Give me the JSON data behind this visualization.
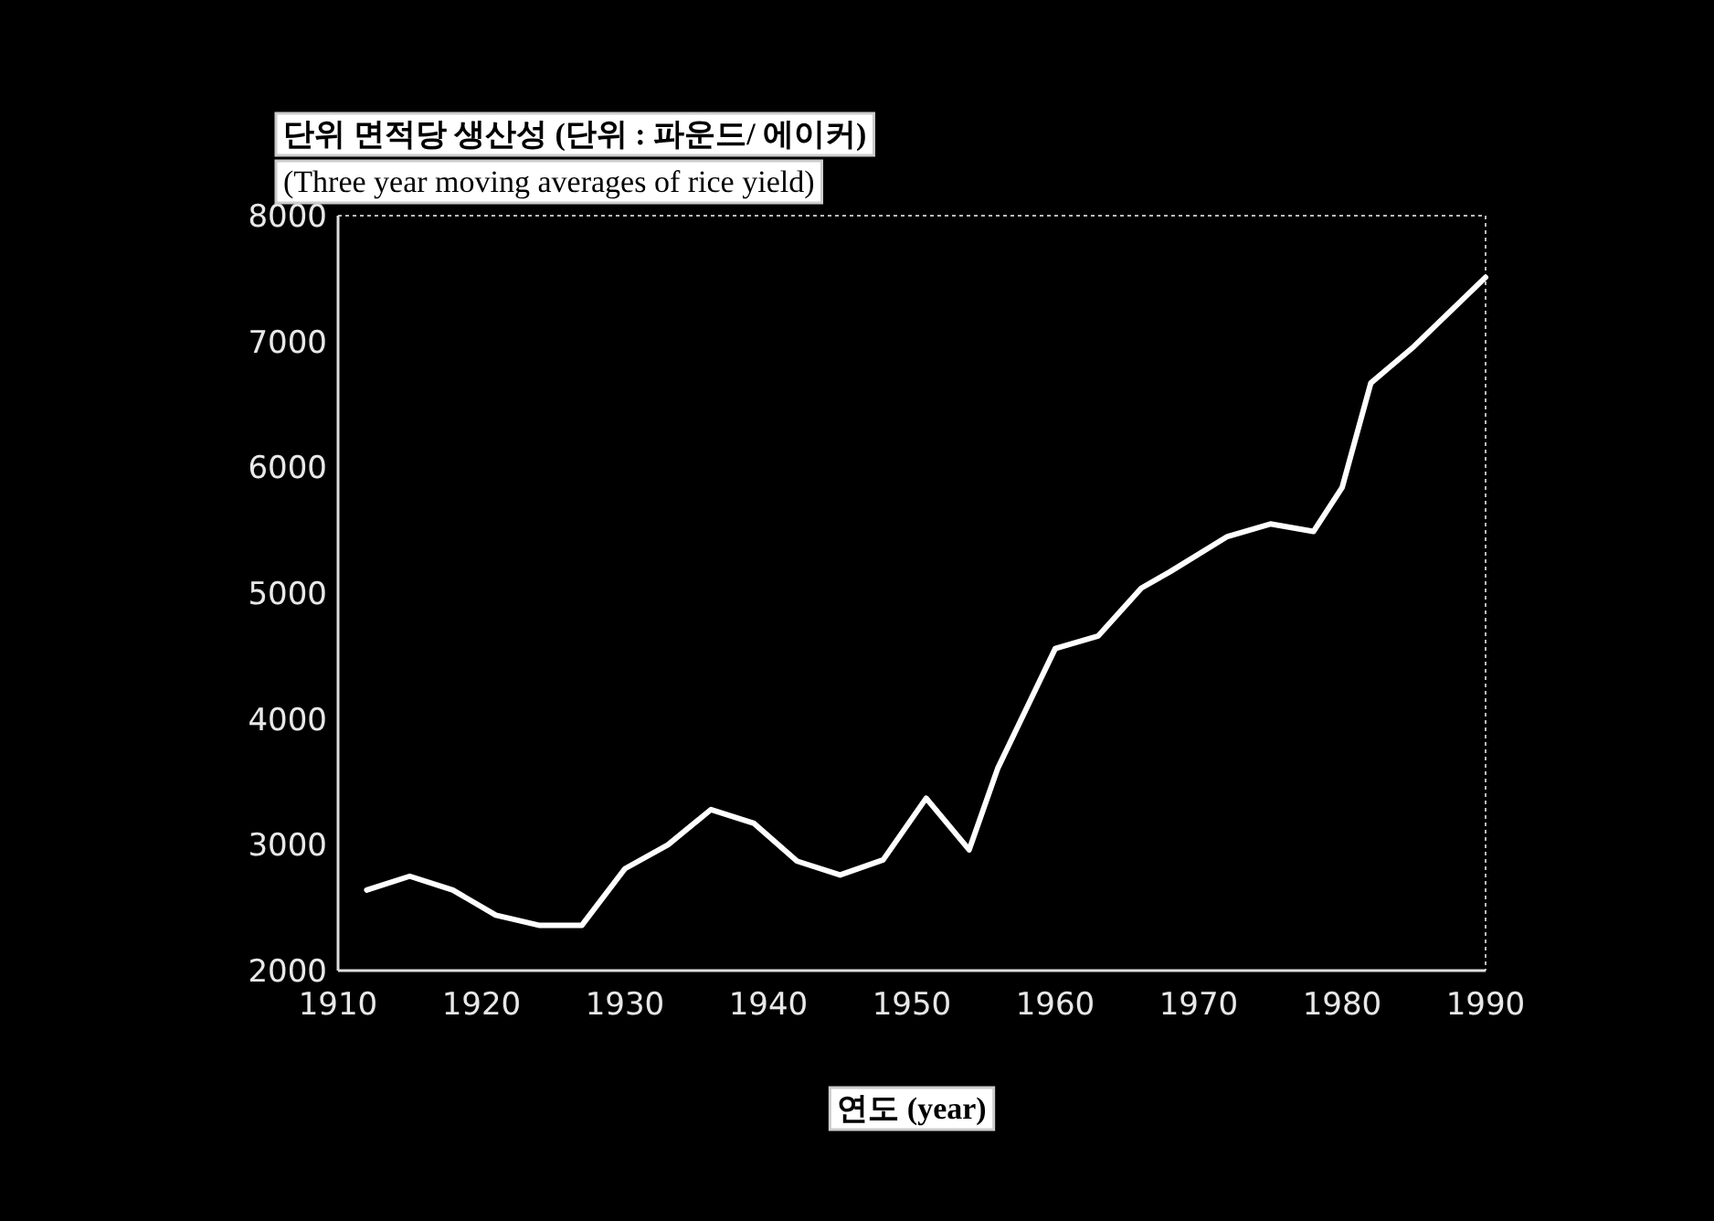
{
  "chart_data": {
    "type": "line",
    "title": "단위 면적당 생산성 (단위 : 파운드/ 에이커)",
    "subtitle": "(Three year moving averages of rice yield)",
    "xlabel": "연도 (year)",
    "x": [
      1912,
      1915,
      1918,
      1921,
      1924,
      1927,
      1930,
      1933,
      1936,
      1939,
      1942,
      1945,
      1948,
      1951,
      1954,
      1956,
      1960,
      1963,
      1966,
      1968,
      1972,
      1975,
      1978,
      1980,
      1982,
      1985,
      1990
    ],
    "values": [
      2640,
      2750,
      2640,
      2440,
      2360,
      2360,
      2810,
      3000,
      3280,
      3170,
      2870,
      2760,
      2880,
      3370,
      2960,
      3610,
      4560,
      4660,
      5040,
      5170,
      5450,
      5550,
      5490,
      5840,
      6670,
      6960,
      7510
    ],
    "color": "#ffffff",
    "xlim": [
      1910,
      1990
    ],
    "ylim": [
      2000,
      8000
    ],
    "xticks": [
      1910,
      1920,
      1930,
      1940,
      1950,
      1960,
      1970,
      1980,
      1990
    ],
    "yticks": [
      2000,
      3000,
      4000,
      5000,
      6000,
      7000,
      8000
    ]
  }
}
